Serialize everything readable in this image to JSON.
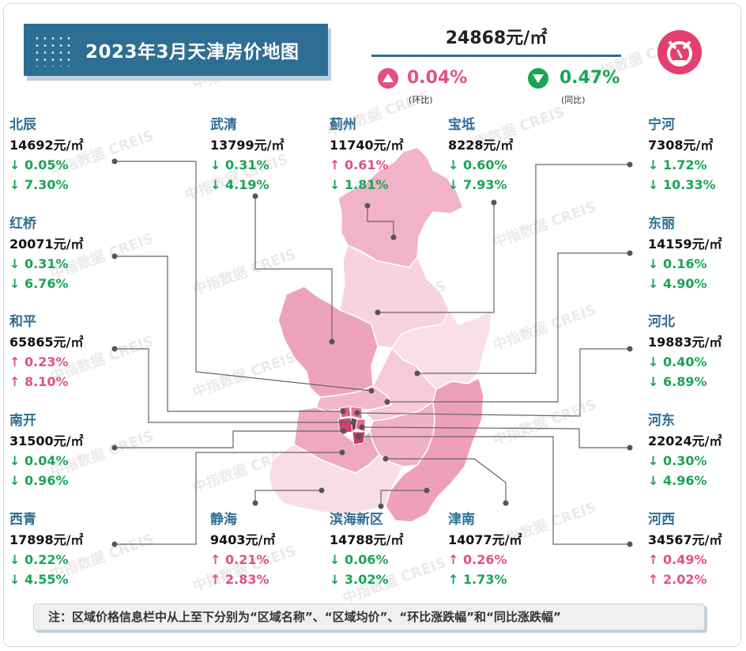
{
  "header": {
    "title": "2023年3月天津房价地图",
    "avg_price": "24868元/㎡",
    "mom_change": "0.04%",
    "mom_label": "(环比)",
    "yoy_change": "0.47%",
    "yoy_label": "(同比)"
  },
  "watermark": "中指数据 CREIS",
  "colors": {
    "accent": "#2e6e94",
    "up": "#e3517e",
    "down": "#1aa456",
    "logo": "#e43f6f"
  },
  "icons": {
    "mom": "triangle-up-icon",
    "yoy": "triangle-down-icon",
    "logo": "creis-logo-icon"
  },
  "districts": [
    {
      "name": "北辰",
      "price": "14692元/㎡",
      "mom": "↓ 0.05%",
      "mom_dir": "down",
      "yoy": "↓ 7.30%",
      "yoy_dir": "down"
    },
    {
      "name": "武清",
      "price": "13799元/㎡",
      "mom": "↓ 0.31%",
      "mom_dir": "down",
      "yoy": "↓ 4.19%",
      "yoy_dir": "down"
    },
    {
      "name": "蓟州",
      "price": "11740元/㎡",
      "mom": "↑ 0.61%",
      "mom_dir": "up",
      "yoy": "↓ 1.81%",
      "yoy_dir": "down"
    },
    {
      "name": "宝坻",
      "price": "8228元/㎡",
      "mom": "↓ 0.60%",
      "mom_dir": "down",
      "yoy": "↓ 7.93%",
      "yoy_dir": "down"
    },
    {
      "name": "宁河",
      "price": "7308元/㎡",
      "mom": "↓ 1.72%",
      "mom_dir": "down",
      "yoy": "↓ 10.33%",
      "yoy_dir": "down"
    },
    {
      "name": "红桥",
      "price": "20071元/㎡",
      "mom": "↓ 0.31%",
      "mom_dir": "down",
      "yoy": "↓ 6.76%",
      "yoy_dir": "down"
    },
    {
      "name": "东丽",
      "price": "14159元/㎡",
      "mom": "↓ 0.16%",
      "mom_dir": "down",
      "yoy": "↓ 4.90%",
      "yoy_dir": "down"
    },
    {
      "name": "和平",
      "price": "65865元/㎡",
      "mom": "↑ 0.23%",
      "mom_dir": "up",
      "yoy": "↑ 8.10%",
      "yoy_dir": "up"
    },
    {
      "name": "河北",
      "price": "19883元/㎡",
      "mom": "↓ 0.40%",
      "mom_dir": "down",
      "yoy": "↓ 6.89%",
      "yoy_dir": "down"
    },
    {
      "name": "南开",
      "price": "31500元/㎡",
      "mom": "↓ 0.04%",
      "mom_dir": "down",
      "yoy": "↓ 0.96%",
      "yoy_dir": "down"
    },
    {
      "name": "河东",
      "price": "22024元/㎡",
      "mom": "↓ 0.30%",
      "mom_dir": "down",
      "yoy": "↓ 4.96%",
      "yoy_dir": "down"
    },
    {
      "name": "西青",
      "price": "17898元/㎡",
      "mom": "↓ 0.22%",
      "mom_dir": "down",
      "yoy": "↓ 4.55%",
      "yoy_dir": "down"
    },
    {
      "name": "静海",
      "price": "9403元/㎡",
      "mom": "↑ 0.21%",
      "mom_dir": "up",
      "yoy": "↑ 2.83%",
      "yoy_dir": "up"
    },
    {
      "name": "滨海新区",
      "price": "14788元/㎡",
      "mom": "↓ 0.06%",
      "mom_dir": "down",
      "yoy": "↓ 3.02%",
      "yoy_dir": "down"
    },
    {
      "name": "津南",
      "price": "14077元/㎡",
      "mom": "↑ 0.26%",
      "mom_dir": "up",
      "yoy": "↑ 1.73%",
      "yoy_dir": "up"
    },
    {
      "name": "河西",
      "price": "34567元/㎡",
      "mom": "↑ 0.49%",
      "mom_dir": "up",
      "yoy": "↑ 2.02%",
      "yoy_dir": "up"
    }
  ],
  "footer": {
    "note": "注：区域价格信息栏中从上至下分别为“区域名称”、“区域均价”、“环比涨跌幅”和“同比涨跌幅”"
  }
}
